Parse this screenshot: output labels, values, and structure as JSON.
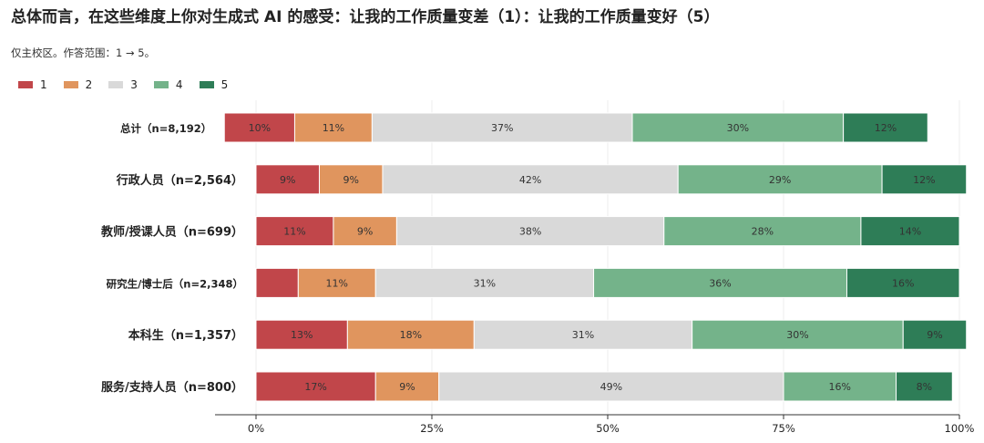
{
  "chart_data": {
    "type": "bar",
    "orientation": "horizontal",
    "stacked": true,
    "title": "总体而言，在这些维度上你对生成式 AI 的感受：让我的工作质量变差（1）：让我的工作质量变好（5）",
    "subtitle": "仅主校区。作答范围：1 → 5。",
    "legend_position": "top-left",
    "grid": true,
    "xlim": [
      0,
      100
    ],
    "x_ticks": [
      "0%",
      "25%",
      "50%",
      "75%",
      "100%"
    ],
    "series_names": [
      "1",
      "2",
      "3",
      "4",
      "5"
    ],
    "colors": [
      "#c1464a",
      "#e0955e",
      "#d9d9d9",
      "#74b38a",
      "#2e7d57"
    ],
    "rows": [
      {
        "label": "总计（n=8,192）",
        "offset": -4.5,
        "values": [
          10,
          11,
          37,
          30,
          12
        ],
        "labels": [
          "10%",
          "11%",
          "37%",
          "30%",
          "12%"
        ]
      },
      {
        "label": "行政人员（n=2,564）",
        "offset": 0,
        "values": [
          9,
          9,
          42,
          29,
          12
        ],
        "labels": [
          "9%",
          "9%",
          "42%",
          "29%",
          "12%"
        ]
      },
      {
        "label": "教师/授课人员（n=699）",
        "offset": 0,
        "values": [
          11,
          9,
          38,
          28,
          14
        ],
        "labels": [
          "11%",
          "9%",
          "38%",
          "28%",
          "14%"
        ]
      },
      {
        "label": "研究生/博士后（n=2,348）",
        "offset": 0,
        "values": [
          6,
          11,
          31,
          36,
          16
        ],
        "labels": [
          "",
          "11%",
          "31%",
          "36%",
          "16%"
        ]
      },
      {
        "label": "本科生（n=1,357）",
        "offset": 0,
        "values": [
          13,
          18,
          31,
          30,
          9
        ],
        "labels": [
          "13%",
          "18%",
          "31%",
          "30%",
          "9%"
        ]
      },
      {
        "label": "服务/支持人员（n=800）",
        "offset": 0,
        "values": [
          17,
          9,
          49,
          16,
          8
        ],
        "labels": [
          "17%",
          "9%",
          "49%",
          "16%",
          "8%"
        ]
      }
    ]
  }
}
